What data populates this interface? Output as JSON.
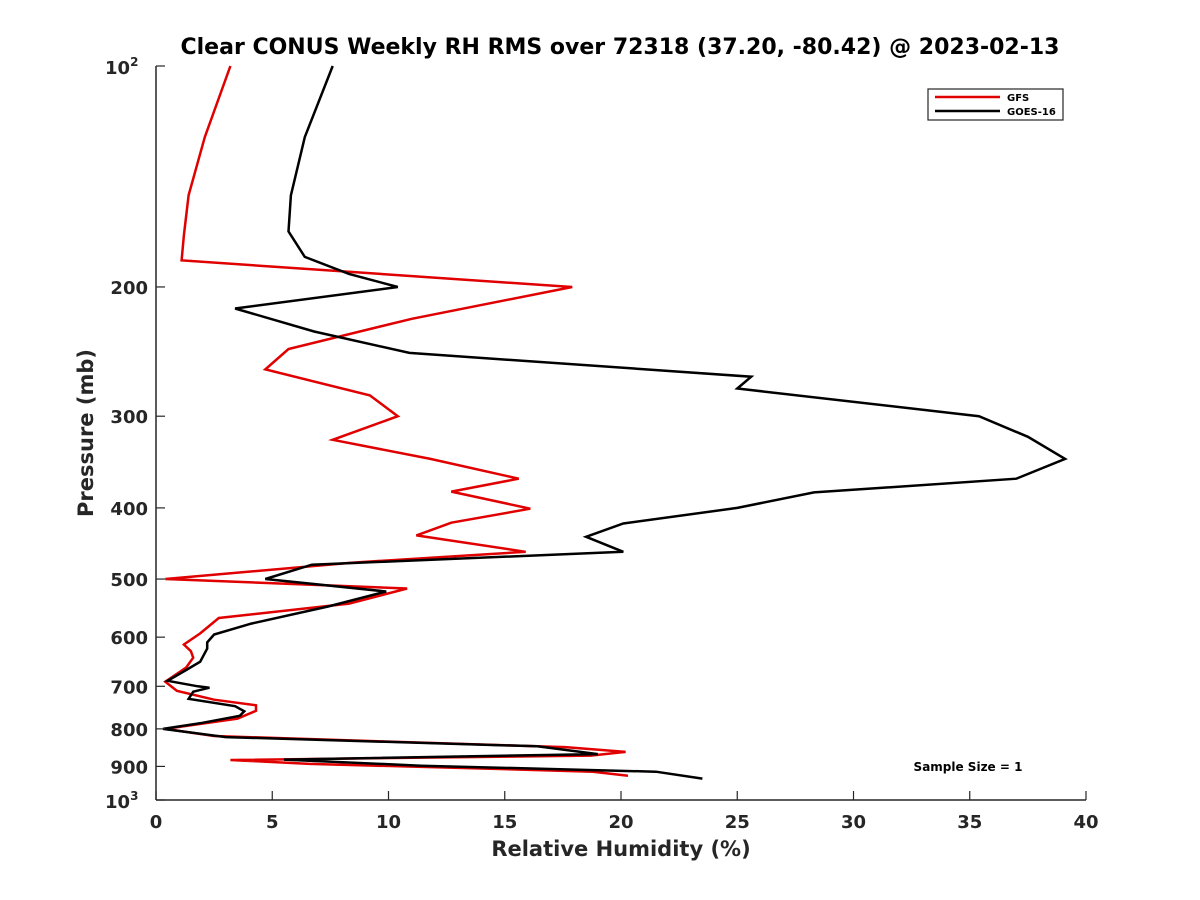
{
  "chart_data": {
    "type": "line",
    "title": "Clear CONUS Weekly RH RMS over 72318 (37.20, -80.42) @ 2023-02-13",
    "xlabel": "Relative Humidity (%)",
    "ylabel": "Pressure (mb)",
    "xlim": [
      0,
      40
    ],
    "ylim": [
      100,
      1000
    ],
    "y_scale": "log",
    "y_reversed": true,
    "x_ticks": [
      "0",
      "5",
      "10",
      "15",
      "20",
      "25",
      "30",
      "35",
      "40"
    ],
    "y_ticks": [
      {
        "value": 100,
        "label": "10",
        "sup": "2"
      },
      {
        "value": 200,
        "label": "200",
        "sup": ""
      },
      {
        "value": 300,
        "label": "300",
        "sup": ""
      },
      {
        "value": 400,
        "label": "400",
        "sup": ""
      },
      {
        "value": 500,
        "label": "500",
        "sup": ""
      },
      {
        "value": 600,
        "label": "600",
        "sup": ""
      },
      {
        "value": 700,
        "label": "700",
        "sup": ""
      },
      {
        "value": 800,
        "label": "800",
        "sup": ""
      },
      {
        "value": 900,
        "label": "900",
        "sup": ""
      },
      {
        "value": 1000,
        "label": "10",
        "sup": "3"
      }
    ],
    "grid": false,
    "legend_position": "top-right",
    "annotation": "Sample Size = 1",
    "series": [
      {
        "name": "GFS",
        "color": "#e00000",
        "points": [
          [
            3.2,
            100
          ],
          [
            2.1,
            125
          ],
          [
            1.4,
            150
          ],
          [
            1.2,
            170
          ],
          [
            1.1,
            184
          ],
          [
            17.9,
            200
          ],
          [
            11.0,
            221
          ],
          [
            5.7,
            243
          ],
          [
            4.7,
            259
          ],
          [
            9.2,
            281
          ],
          [
            10.4,
            300
          ],
          [
            7.6,
            323
          ],
          [
            11.8,
            343
          ],
          [
            15.6,
            365
          ],
          [
            12.7,
            380
          ],
          [
            16.1,
            401
          ],
          [
            12.7,
            419
          ],
          [
            11.2,
            436
          ],
          [
            15.9,
            459
          ],
          [
            8.4,
            475
          ],
          [
            0.4,
            500
          ],
          [
            10.8,
            515
          ],
          [
            8.3,
            540
          ],
          [
            2.7,
            565
          ],
          [
            1.9,
            593
          ],
          [
            1.2,
            614
          ],
          [
            1.5,
            627
          ],
          [
            1.6,
            640
          ],
          [
            1.3,
            660
          ],
          [
            0.4,
            690
          ],
          [
            0.9,
            710
          ],
          [
            2.5,
            730
          ],
          [
            4.3,
            743
          ],
          [
            4.3,
            756
          ],
          [
            3.5,
            775
          ],
          [
            0.4,
            800
          ],
          [
            2.5,
            818
          ],
          [
            9.7,
            832
          ],
          [
            17.6,
            847
          ],
          [
            20.2,
            860
          ],
          [
            18.7,
            870
          ],
          [
            3.2,
            882
          ],
          [
            6.6,
            893
          ],
          [
            13.6,
            905
          ],
          [
            18.8,
            915
          ],
          [
            20.3,
            927
          ]
        ]
      },
      {
        "name": "GOES-16",
        "color": "#000000",
        "points": [
          [
            7.6,
            100
          ],
          [
            6.4,
            125
          ],
          [
            5.8,
            150
          ],
          [
            5.7,
            168
          ],
          [
            6.4,
            182
          ],
          [
            8.3,
            192
          ],
          [
            10.4,
            200
          ],
          [
            3.4,
            214
          ],
          [
            6.8,
            230
          ],
          [
            10.9,
            246
          ],
          [
            25.6,
            265
          ],
          [
            25.0,
            275
          ],
          [
            35.4,
            300
          ],
          [
            37.5,
            320
          ],
          [
            39.1,
            343
          ],
          [
            37.0,
            365
          ],
          [
            28.3,
            381
          ],
          [
            25.0,
            400
          ],
          [
            20.1,
            420
          ],
          [
            18.5,
            438
          ],
          [
            20.1,
            459
          ],
          [
            6.7,
            478
          ],
          [
            4.7,
            500
          ],
          [
            9.9,
            520
          ],
          [
            7.4,
            545
          ],
          [
            4.1,
            575
          ],
          [
            2.5,
            595
          ],
          [
            2.2,
            610
          ],
          [
            2.2,
            622
          ],
          [
            1.9,
            648
          ],
          [
            1.3,
            665
          ],
          [
            0.5,
            688
          ],
          [
            1.8,
            700
          ],
          [
            2.3,
            703
          ],
          [
            1.6,
            712
          ],
          [
            1.4,
            728
          ],
          [
            3.4,
            745
          ],
          [
            3.8,
            757
          ],
          [
            3.6,
            768
          ],
          [
            2.0,
            785
          ],
          [
            0.3,
            800
          ],
          [
            3.0,
            821
          ],
          [
            16.4,
            845
          ],
          [
            19.0,
            866
          ],
          [
            5.5,
            881
          ],
          [
            11.4,
            898
          ],
          [
            21.5,
            915
          ],
          [
            23.5,
            935
          ]
        ]
      }
    ]
  }
}
